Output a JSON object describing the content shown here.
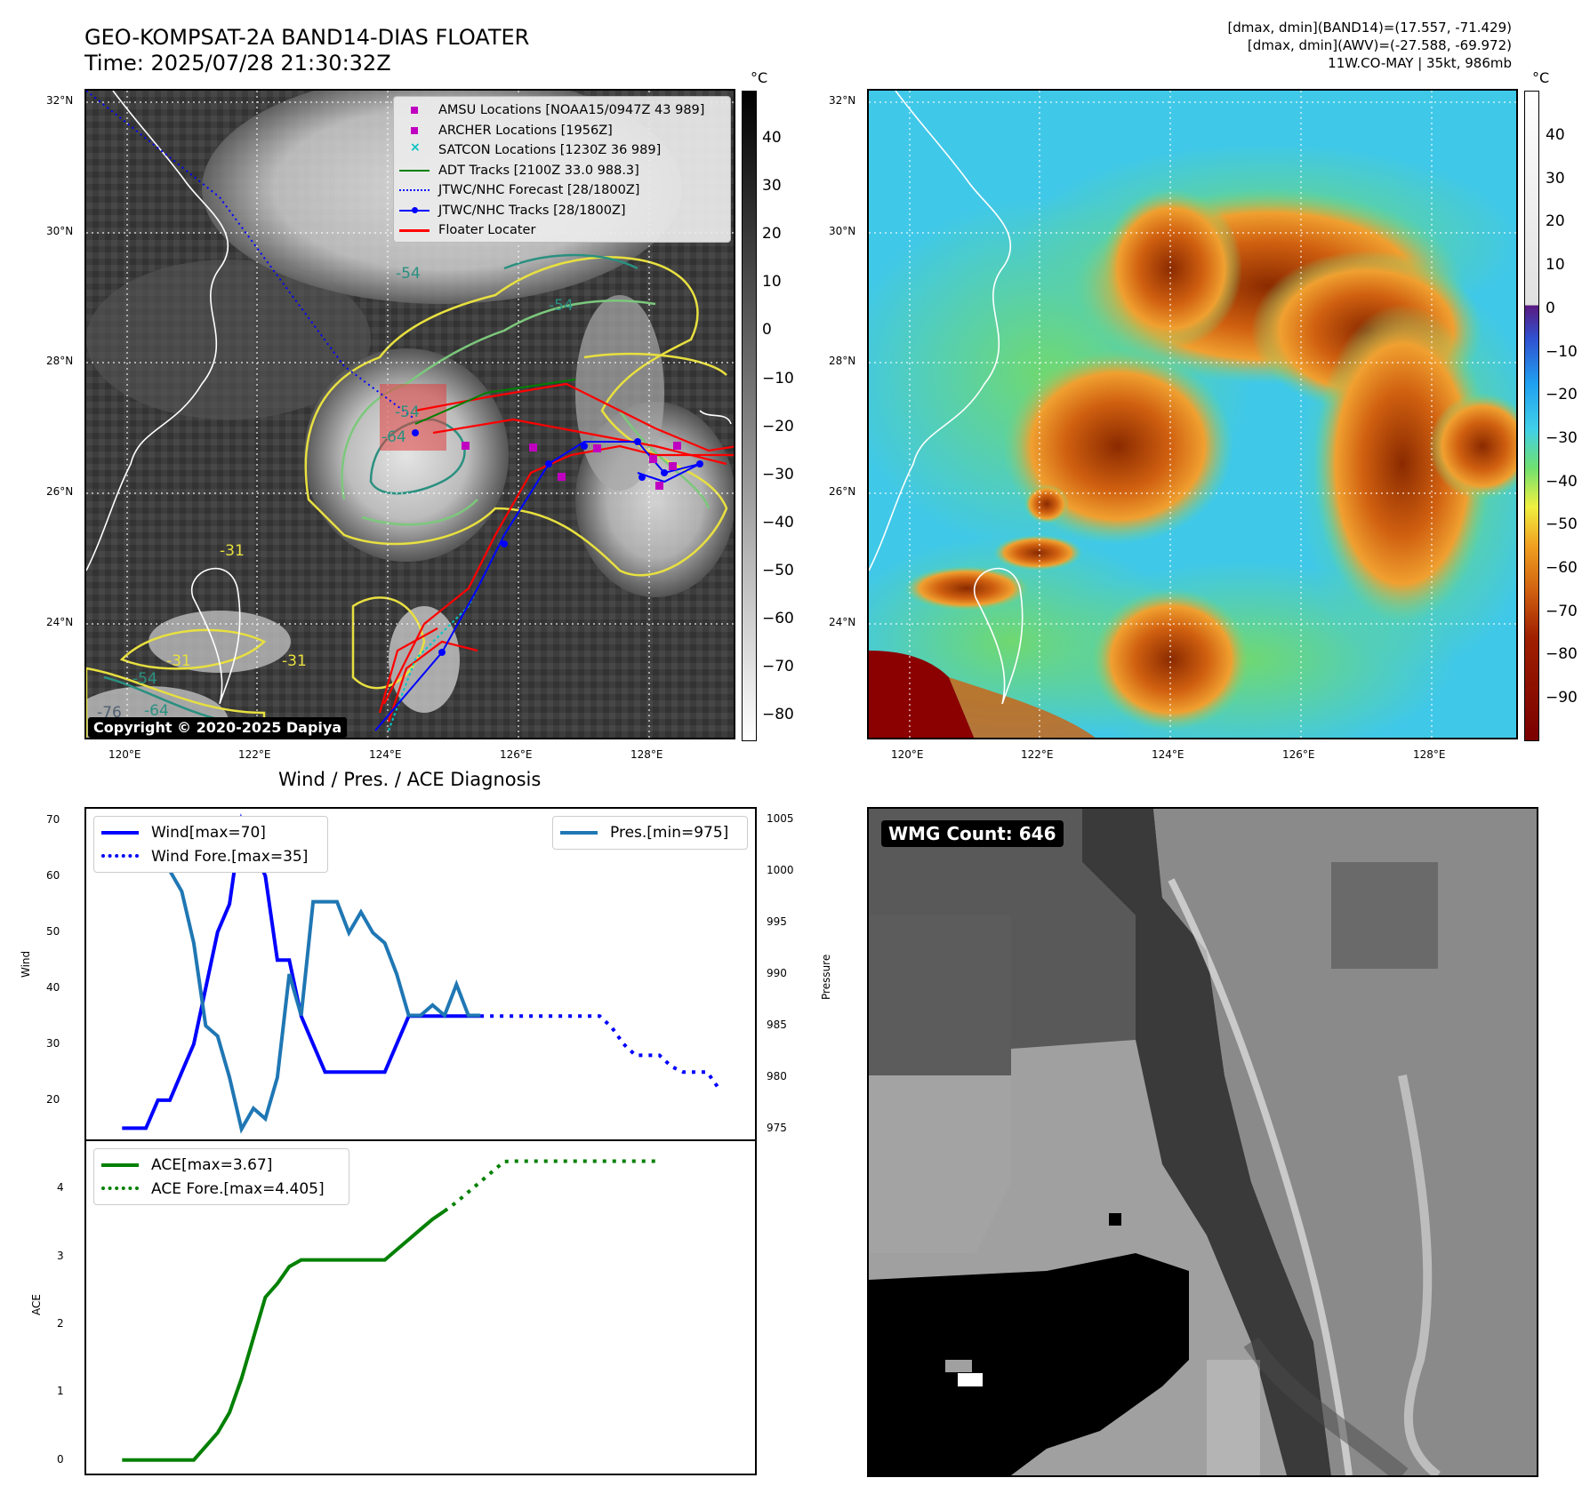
{
  "header": {
    "title_line1": "GEO-KOMPSAT-2A BAND14-DIAS FLOATER",
    "title_line2": "Time: 2025/07/28 21:30:32Z",
    "info_line1": "[dmax, dmin](BAND14)=(17.557, -71.429)",
    "info_line2": "[dmax, dmin](AWV)=(-27.588, -69.972)",
    "info_line3": "11W.CO-MAY | 35kt, 986mb"
  },
  "map": {
    "lat_labels": [
      "32°N",
      "30°N",
      "28°N",
      "26°N",
      "24°N"
    ],
    "lon_labels": [
      "120°E",
      "122°E",
      "124°E",
      "126°E",
      "128°E"
    ],
    "copyright": "Copyright © 2020-2025 Dapiya",
    "contour_labels": [
      "-54",
      "-54",
      "-64",
      "-31",
      "-31",
      "-31",
      "-54",
      "-64",
      "-76",
      "-54"
    ],
    "legend": [
      {
        "label": "AMSU Locations [NOAA15/0947Z 43 989]",
        "color": "#c000c0",
        "kind": "square"
      },
      {
        "label": "ARCHER Locations [1956Z]",
        "color": "#c000c0",
        "kind": "square"
      },
      {
        "label": "SATCON Locations [1230Z 36 989]",
        "color": "#00c0c0",
        "kind": "x"
      },
      {
        "label": "ADT Tracks [2100Z 33.0 988.3]",
        "color": "#008000",
        "kind": "line"
      },
      {
        "label": "JTWC/NHC Forecast [28/1800Z]",
        "color": "#0000ff",
        "kind": "dotted"
      },
      {
        "label": "JTWC/NHC Tracks [28/1800Z]",
        "color": "#0000ff",
        "kind": "linedot"
      },
      {
        "label": "Floater Locater",
        "color": "#ff0000",
        "kind": "line"
      }
    ],
    "colorbar_unit": "°C",
    "bw_colorbar_ticks": [
      "40",
      "30",
      "20",
      "10",
      "0",
      "−10",
      "−20",
      "−30",
      "−40",
      "−50",
      "−60",
      "−70",
      "−80"
    ],
    "color_colorbar_ticks": [
      "40",
      "30",
      "20",
      "10",
      "0",
      "−10",
      "−20",
      "−30",
      "−40",
      "−50",
      "−60",
      "−70",
      "−80",
      "−90"
    ]
  },
  "diagnosis": {
    "title": "Wind / Pres. / ACE Diagnosis",
    "wind_ylabel": "Wind",
    "pres_ylabel": "Pressure",
    "ace_ylabel": "ACE",
    "wind_ticks": [
      "70",
      "60",
      "50",
      "40",
      "30",
      "20"
    ],
    "pres_ticks": [
      "1005",
      "1000",
      "995",
      "990",
      "985",
      "980",
      "975"
    ],
    "ace_ticks": [
      "4",
      "3",
      "2",
      "1",
      "0"
    ],
    "legend_wind": "Wind[max=70]",
    "legend_wind_fore": "Wind Fore.[max=35]",
    "legend_pres": "Pres.[min=975]",
    "legend_ace": "ACE[max=3.67]",
    "legend_ace_fore": "ACE Fore.[max=4.405]"
  },
  "wmg": {
    "label": "WMG Count: 646"
  },
  "colors": {
    "wind": "#0000ff",
    "pressure": "#1f77b4",
    "ace": "#008000",
    "floater": "#ff0000"
  },
  "chart_data": [
    {
      "type": "line",
      "title": "Wind / Pres. / ACE Diagnosis",
      "ylabel": "Wind",
      "ylim": [
        13,
        72
      ],
      "x": [
        0,
        1,
        2,
        3,
        4,
        5,
        6,
        7,
        8,
        9,
        10,
        11,
        12,
        13,
        14,
        15,
        16,
        17,
        18,
        19,
        20,
        21,
        22,
        23,
        24,
        25,
        26,
        27,
        28,
        29,
        30,
        31,
        32,
        33,
        34,
        35,
        36,
        37,
        38,
        39,
        40,
        41,
        42,
        43,
        44,
        45,
        46,
        47,
        48,
        49,
        50
      ],
      "series": [
        {
          "name": "Wind[max=70]",
          "values": [
            15,
            15,
            15,
            20,
            20,
            25,
            30,
            40,
            50,
            55,
            70,
            65,
            60,
            45,
            45,
            35,
            30,
            25,
            25,
            25,
            25,
            25,
            25,
            30,
            35,
            35,
            35,
            35,
            35,
            35,
            35,
            null,
            null,
            null,
            null,
            null,
            null,
            null,
            null,
            null,
            null,
            null,
            null,
            null,
            null,
            null,
            null,
            null,
            null,
            null,
            null
          ]
        },
        {
          "name": "Wind Fore.[max=35]",
          "values": [
            null,
            null,
            null,
            null,
            null,
            null,
            null,
            null,
            null,
            null,
            null,
            null,
            null,
            null,
            null,
            null,
            null,
            null,
            null,
            null,
            null,
            null,
            null,
            null,
            null,
            null,
            null,
            null,
            null,
            null,
            35,
            35,
            35,
            35,
            35,
            35,
            35,
            35,
            35,
            35,
            35,
            33,
            30,
            28,
            28,
            28,
            26,
            25,
            25,
            25,
            22
          ]
        }
      ]
    },
    {
      "type": "line",
      "ylabel": "Pressure",
      "ylim": [
        974,
        1006
      ],
      "x": [
        0,
        1,
        2,
        3,
        4,
        5,
        6,
        7,
        8,
        9,
        10,
        11,
        12,
        13,
        14,
        15,
        16,
        17,
        18,
        19,
        20,
        21,
        22,
        23,
        24,
        25,
        26,
        27,
        28,
        29,
        30
      ],
      "series": [
        {
          "name": "Pres.[min=975]",
          "values": [
            1005,
            1005,
            1005,
            1005,
            1000,
            998,
            993,
            985,
            984,
            980,
            975,
            977,
            976,
            980,
            990,
            986,
            997,
            997,
            997,
            994,
            996,
            994,
            993,
            990,
            986,
            986,
            987,
            986,
            989,
            986,
            986
          ]
        }
      ]
    },
    {
      "type": "line",
      "ylabel": "ACE",
      "ylim": [
        -0.2,
        4.7
      ],
      "x": [
        0,
        1,
        2,
        3,
        4,
        5,
        6,
        7,
        8,
        9,
        10,
        11,
        12,
        13,
        14,
        15,
        16,
        17,
        18,
        19,
        20,
        21,
        22,
        23,
        24,
        25,
        26,
        27,
        28,
        29,
        30,
        31,
        32,
        33,
        34,
        35,
        36,
        37,
        38,
        39,
        40,
        41,
        42,
        43,
        44,
        45
      ],
      "series": [
        {
          "name": "ACE[max=3.67]",
          "values": [
            0,
            0,
            0,
            0,
            0,
            0,
            0,
            0.2,
            0.4,
            0.7,
            1.2,
            1.8,
            2.4,
            2.6,
            2.85,
            2.95,
            2.95,
            2.95,
            2.95,
            2.95,
            2.95,
            2.95,
            2.95,
            3.1,
            3.25,
            3.4,
            3.55,
            3.67,
            null,
            null,
            null,
            null,
            null,
            null,
            null,
            null,
            null,
            null,
            null,
            null,
            null,
            null,
            null,
            null,
            null,
            null
          ]
        },
        {
          "name": "ACE Fore.[max=4.405]",
          "values": [
            null,
            null,
            null,
            null,
            null,
            null,
            null,
            null,
            null,
            null,
            null,
            null,
            null,
            null,
            null,
            null,
            null,
            null,
            null,
            null,
            null,
            null,
            null,
            null,
            null,
            null,
            null,
            3.67,
            3.8,
            3.95,
            4.1,
            4.25,
            4.4,
            4.405,
            4.405,
            4.405,
            4.405,
            4.405,
            4.405,
            4.405,
            4.405,
            4.405,
            4.405,
            4.405,
            4.405,
            4.405
          ]
        }
      ]
    }
  ]
}
